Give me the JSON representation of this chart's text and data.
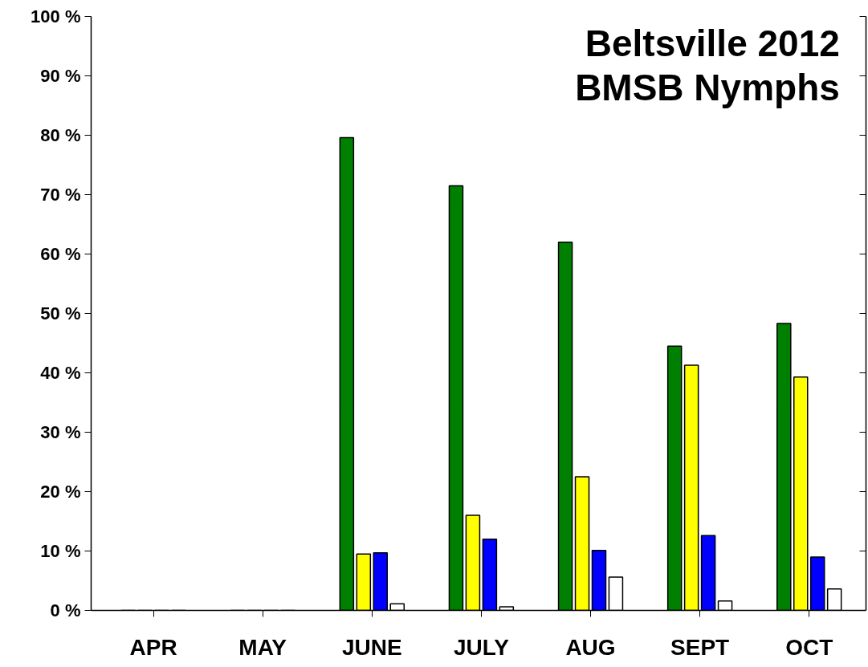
{
  "chart_data": {
    "type": "bar",
    "title": "Beltsville 2012",
    "subtitle": "BMSB Nymphs",
    "categories": [
      "APR",
      "MAY",
      "JUNE",
      "JULY",
      "AUG",
      "SEPT",
      "OCT"
    ],
    "series": [
      {
        "color": "#008000",
        "values": [
          0,
          0,
          79.6,
          71.5,
          62,
          44.5,
          48.3
        ]
      },
      {
        "color": "#ffff00",
        "values": [
          0,
          0,
          9.5,
          16,
          22.5,
          41.3,
          39.3
        ]
      },
      {
        "color": "#0000ff",
        "values": [
          0,
          0,
          9.7,
          12,
          10.1,
          12.6,
          9
        ]
      },
      {
        "color": "#ffffff",
        "values": [
          0,
          0,
          1.1,
          0.6,
          5.6,
          1.6,
          3.6
        ]
      }
    ],
    "ylim": [
      0,
      100
    ],
    "yticks": [
      {
        "value": 0,
        "label": "0 %"
      },
      {
        "value": 10,
        "label": "10 %"
      },
      {
        "value": 20,
        "label": "20 %"
      },
      {
        "value": 30,
        "label": "30 %"
      },
      {
        "value": 40,
        "label": "40 %"
      },
      {
        "value": 50,
        "label": "50 %"
      },
      {
        "value": 60,
        "label": "60 %"
      },
      {
        "value": 70,
        "label": "70 %"
      },
      {
        "value": 80,
        "label": "80 %"
      },
      {
        "value": 90,
        "label": "90 %"
      },
      {
        "value": 100,
        "label": "100 %"
      }
    ],
    "grid": false
  }
}
